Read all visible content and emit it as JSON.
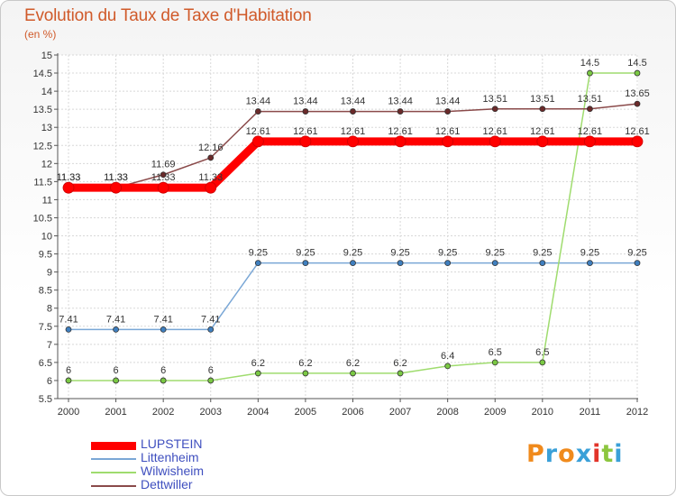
{
  "title": "Evolution du Taux de Taxe d'Habitation",
  "subtitle": "(en %)",
  "logo": {
    "text": "Proxiti",
    "colors": [
      "#f08a1c",
      "#3aa0d8",
      "#f08a1c",
      "#3aa0d8",
      "#e2342a",
      "#8cc63f",
      "#3aa0d8"
    ]
  },
  "chart_data": {
    "type": "line",
    "title": "Evolution du Taux de Taxe d'Habitation",
    "ylabel": "(en %)",
    "xlabel": "",
    "x": [
      "2000",
      "2001",
      "2002",
      "2003",
      "2004",
      "2005",
      "2006",
      "2007",
      "2008",
      "2009",
      "2010",
      "2011",
      "2012"
    ],
    "ylim": [
      5.5,
      15
    ],
    "yticks": [
      "5.5",
      "6",
      "6.5",
      "7",
      "7.5",
      "8",
      "8.5",
      "9",
      "9.5",
      "10",
      "10.5",
      "11",
      "11.5",
      "12",
      "12.5",
      "13",
      "13.5",
      "14",
      "14.5",
      "15"
    ],
    "grid": true,
    "legend": "bottom-left",
    "series": [
      {
        "name": "LUPSTEIN",
        "color": "#ff0000",
        "point_color": "#ff0000",
        "width": 9,
        "values": [
          11.33,
          11.33,
          11.33,
          11.33,
          12.61,
          12.61,
          12.61,
          12.61,
          12.61,
          12.61,
          12.61,
          12.61,
          12.61
        ],
        "labels": [
          "11.33",
          "11.33",
          "11.33",
          "11.33",
          "12.61",
          "12.61",
          "12.61",
          "12.61",
          "12.61",
          "12.61",
          "12.61",
          "12.61",
          "12.61"
        ]
      },
      {
        "name": "Littenheim",
        "color": "#7aa7d6",
        "point_color": "#3f7fbf",
        "width": 1.5,
        "values": [
          7.41,
          7.41,
          7.41,
          7.41,
          9.25,
          9.25,
          9.25,
          9.25,
          9.25,
          9.25,
          9.25,
          9.25,
          9.25
        ],
        "labels": [
          "7.41",
          "7.41",
          "7.41",
          "7.41",
          "9.25",
          "9.25",
          "9.25",
          "9.25",
          "9.25",
          "9.25",
          "9.25",
          "9.25",
          "9.25"
        ]
      },
      {
        "name": "Wilwisheim",
        "color": "#9fdc6e",
        "point_color": "#7ac943",
        "width": 1.5,
        "values": [
          6,
          6,
          6,
          6,
          6.2,
          6.2,
          6.2,
          6.2,
          6.4,
          6.5,
          6.5,
          14.5,
          14.5
        ],
        "labels": [
          "6",
          "6",
          "6",
          "6",
          "6.2",
          "6.2",
          "6.2",
          "6.2",
          "6.4",
          "6.5",
          "6.5",
          "14.5",
          "14.5"
        ]
      },
      {
        "name": "Dettwiller",
        "color": "#8a4a4a",
        "point_color": "#6b2a2a",
        "width": 1.5,
        "values": [
          11.33,
          11.33,
          11.69,
          12.16,
          13.44,
          13.44,
          13.44,
          13.44,
          13.44,
          13.51,
          13.51,
          13.51,
          13.65
        ],
        "labels": [
          "11.33",
          "11.33",
          "11.69",
          "12.16",
          "13.44",
          "13.44",
          "13.44",
          "13.44",
          "13.44",
          "13.51",
          "13.51",
          "13.51",
          "13.65"
        ]
      }
    ]
  }
}
